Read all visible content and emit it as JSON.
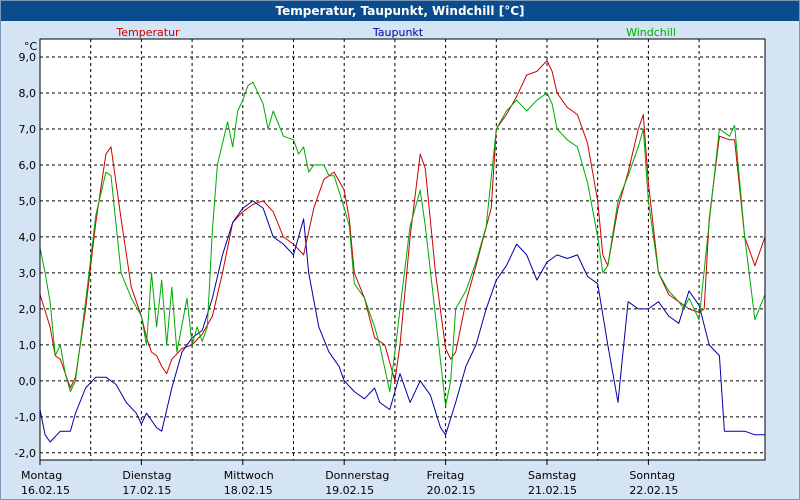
{
  "window": {
    "title": "Temperatur, Taupunkt, Windchill [°C]"
  },
  "colors": {
    "temperature": "#cc0000",
    "dewpoint": "#0000aa",
    "windchill": "#00aa00",
    "grid": "#000000",
    "plot_bg": "#ffffff",
    "titlebar": "#0b4c8f",
    "background": "#d4e4f4"
  },
  "chart_data": {
    "type": "line",
    "title": "Temperatur, Taupunkt, Windchill [°C]",
    "ylabel": "°C",
    "ylim": [
      -2.2,
      9.5
    ],
    "yticks": [
      -2,
      -1,
      0,
      1,
      2,
      3,
      4,
      5,
      6,
      7,
      8,
      9
    ],
    "ytick_labels": [
      "-2,0",
      "-1,0",
      "0,0",
      "1,0",
      "2,0",
      "3,0",
      "4,0",
      "5,0",
      "6,0",
      "7,0",
      "8,0",
      "9,0"
    ],
    "xlim": [
      0,
      7.15
    ],
    "x_unit": "days from 16.02.15 00:00",
    "xticks": [
      {
        "x": 0,
        "day": "Montag",
        "date": "16.02.15"
      },
      {
        "x": 1,
        "day": "Dienstag",
        "date": "17.02.15"
      },
      {
        "x": 2,
        "day": "Mittwoch",
        "date": "18.02.15"
      },
      {
        "x": 3,
        "day": "Donnerstag",
        "date": "19.02.15"
      },
      {
        "x": 4,
        "day": "Freitag",
        "date": "20.02.15"
      },
      {
        "x": 5,
        "day": "Samstag",
        "date": "21.02.15"
      },
      {
        "x": 6,
        "day": "Sonntag",
        "date": "22.02.15"
      }
    ],
    "grid": true,
    "series": [
      {
        "name": "Temperatur",
        "points": [
          [
            0,
            2.4
          ],
          [
            0.1,
            1.5
          ],
          [
            0.15,
            0.7
          ],
          [
            0.2,
            0.6
          ],
          [
            0.3,
            -0.2
          ],
          [
            0.35,
            0.1
          ],
          [
            0.45,
            2.0
          ],
          [
            0.55,
            4.4
          ],
          [
            0.65,
            6.3
          ],
          [
            0.7,
            6.5
          ],
          [
            0.8,
            4.5
          ],
          [
            0.9,
            2.6
          ],
          [
            1.0,
            1.8
          ],
          [
            1.05,
            1.2
          ],
          [
            1.1,
            0.8
          ],
          [
            1.15,
            0.7
          ],
          [
            1.2,
            0.4
          ],
          [
            1.25,
            0.2
          ],
          [
            1.3,
            0.6
          ],
          [
            1.4,
            0.9
          ],
          [
            1.5,
            1.0
          ],
          [
            1.6,
            1.3
          ],
          [
            1.7,
            1.8
          ],
          [
            1.8,
            3.0
          ],
          [
            1.9,
            4.4
          ],
          [
            2.0,
            4.7
          ],
          [
            2.1,
            4.9
          ],
          [
            2.2,
            5.0
          ],
          [
            2.3,
            4.7
          ],
          [
            2.4,
            4.0
          ],
          [
            2.5,
            3.8
          ],
          [
            2.6,
            3.5
          ],
          [
            2.7,
            4.8
          ],
          [
            2.8,
            5.6
          ],
          [
            2.9,
            5.8
          ],
          [
            3.0,
            5.3
          ],
          [
            3.05,
            4.5
          ],
          [
            3.1,
            3.0
          ],
          [
            3.2,
            2.3
          ],
          [
            3.3,
            1.2
          ],
          [
            3.4,
            1.0
          ],
          [
            3.5,
            0.0
          ],
          [
            3.55,
            1.0
          ],
          [
            3.65,
            4.0
          ],
          [
            3.75,
            6.3
          ],
          [
            3.8,
            5.9
          ],
          [
            3.9,
            3.0
          ],
          [
            4.0,
            0.9
          ],
          [
            4.05,
            0.6
          ],
          [
            4.1,
            0.8
          ],
          [
            4.2,
            2.2
          ],
          [
            4.3,
            3.2
          ],
          [
            4.45,
            4.8
          ],
          [
            4.5,
            7.0
          ],
          [
            4.6,
            7.4
          ],
          [
            4.7,
            7.9
          ],
          [
            4.8,
            8.5
          ],
          [
            4.9,
            8.6
          ],
          [
            5.0,
            8.9
          ],
          [
            5.05,
            8.6
          ],
          [
            5.1,
            8.0
          ],
          [
            5.2,
            7.6
          ],
          [
            5.3,
            7.4
          ],
          [
            5.4,
            6.6
          ],
          [
            5.5,
            5.0
          ],
          [
            5.55,
            3.5
          ],
          [
            5.6,
            3.2
          ],
          [
            5.7,
            4.8
          ],
          [
            5.8,
            5.8
          ],
          [
            5.9,
            7.0
          ],
          [
            5.95,
            7.4
          ],
          [
            6.0,
            5.5
          ],
          [
            6.1,
            3.0
          ],
          [
            6.2,
            2.4
          ],
          [
            6.3,
            2.2
          ],
          [
            6.4,
            2.0
          ],
          [
            6.5,
            1.9
          ],
          [
            6.55,
            2.0
          ],
          [
            6.6,
            4.5
          ],
          [
            6.7,
            6.8
          ],
          [
            6.8,
            6.7
          ],
          [
            6.85,
            6.7
          ],
          [
            6.95,
            4.0
          ],
          [
            7.05,
            3.2
          ],
          [
            7.15,
            4.0
          ]
        ]
      },
      {
        "name": "Taupunkt",
        "points": [
          [
            0,
            -0.8
          ],
          [
            0.05,
            -1.5
          ],
          [
            0.1,
            -1.7
          ],
          [
            0.2,
            -1.4
          ],
          [
            0.3,
            -1.4
          ],
          [
            0.35,
            -0.9
          ],
          [
            0.45,
            -0.2
          ],
          [
            0.55,
            0.1
          ],
          [
            0.65,
            0.1
          ],
          [
            0.75,
            -0.1
          ],
          [
            0.85,
            -0.6
          ],
          [
            0.95,
            -0.9
          ],
          [
            1.0,
            -1.2
          ],
          [
            1.05,
            -0.9
          ],
          [
            1.15,
            -1.3
          ],
          [
            1.2,
            -1.4
          ],
          [
            1.3,
            -0.2
          ],
          [
            1.4,
            0.8
          ],
          [
            1.5,
            1.2
          ],
          [
            1.6,
            1.4
          ],
          [
            1.7,
            2.3
          ],
          [
            1.8,
            3.5
          ],
          [
            1.9,
            4.4
          ],
          [
            2.0,
            4.8
          ],
          [
            2.1,
            5.0
          ],
          [
            2.2,
            4.8
          ],
          [
            2.3,
            4.0
          ],
          [
            2.4,
            3.8
          ],
          [
            2.5,
            3.5
          ],
          [
            2.6,
            4.5
          ],
          [
            2.65,
            3.0
          ],
          [
            2.75,
            1.5
          ],
          [
            2.85,
            0.8
          ],
          [
            2.95,
            0.4
          ],
          [
            3.0,
            0.0
          ],
          [
            3.1,
            -0.3
          ],
          [
            3.2,
            -0.5
          ],
          [
            3.3,
            -0.2
          ],
          [
            3.35,
            -0.6
          ],
          [
            3.45,
            -0.8
          ],
          [
            3.55,
            0.2
          ],
          [
            3.65,
            -0.6
          ],
          [
            3.75,
            0.0
          ],
          [
            3.85,
            -0.4
          ],
          [
            3.95,
            -1.3
          ],
          [
            4.0,
            -1.5
          ],
          [
            4.1,
            -0.6
          ],
          [
            4.2,
            0.4
          ],
          [
            4.3,
            1.0
          ],
          [
            4.4,
            2.0
          ],
          [
            4.5,
            2.8
          ],
          [
            4.6,
            3.2
          ],
          [
            4.7,
            3.8
          ],
          [
            4.8,
            3.5
          ],
          [
            4.9,
            2.8
          ],
          [
            5.0,
            3.3
          ],
          [
            5.1,
            3.5
          ],
          [
            5.2,
            3.4
          ],
          [
            5.3,
            3.5
          ],
          [
            5.4,
            2.9
          ],
          [
            5.5,
            2.7
          ],
          [
            5.6,
            1.0
          ],
          [
            5.7,
            -0.6
          ],
          [
            5.75,
            0.8
          ],
          [
            5.8,
            2.2
          ],
          [
            5.9,
            2.0
          ],
          [
            6.0,
            2.0
          ],
          [
            6.1,
            2.2
          ],
          [
            6.2,
            1.8
          ],
          [
            6.3,
            1.6
          ],
          [
            6.4,
            2.5
          ],
          [
            6.5,
            2.1
          ],
          [
            6.6,
            1.0
          ],
          [
            6.7,
            0.7
          ],
          [
            6.75,
            -1.4
          ],
          [
            6.8,
            -1.4
          ],
          [
            6.85,
            -1.4
          ],
          [
            6.95,
            -1.4
          ],
          [
            7.05,
            -1.5
          ],
          [
            7.15,
            -1.5
          ]
        ]
      },
      {
        "name": "Windchill",
        "points": [
          [
            0,
            3.7
          ],
          [
            0.05,
            3.0
          ],
          [
            0.1,
            2.2
          ],
          [
            0.15,
            0.7
          ],
          [
            0.2,
            1.0
          ],
          [
            0.25,
            0.2
          ],
          [
            0.3,
            -0.3
          ],
          [
            0.35,
            0.0
          ],
          [
            0.45,
            2.2
          ],
          [
            0.55,
            4.6
          ],
          [
            0.65,
            5.8
          ],
          [
            0.7,
            5.7
          ],
          [
            0.8,
            3.0
          ],
          [
            0.9,
            2.3
          ],
          [
            1.0,
            1.8
          ],
          [
            1.05,
            1.0
          ],
          [
            1.1,
            3.0
          ],
          [
            1.15,
            1.5
          ],
          [
            1.2,
            2.8
          ],
          [
            1.25,
            1.0
          ],
          [
            1.3,
            2.6
          ],
          [
            1.35,
            0.8
          ],
          [
            1.45,
            2.3
          ],
          [
            1.5,
            1.0
          ],
          [
            1.55,
            1.5
          ],
          [
            1.6,
            1.1
          ],
          [
            1.65,
            1.5
          ],
          [
            1.7,
            4.2
          ],
          [
            1.75,
            6.0
          ],
          [
            1.85,
            7.2
          ],
          [
            1.9,
            6.5
          ],
          [
            1.95,
            7.5
          ],
          [
            2.0,
            7.8
          ],
          [
            2.05,
            8.2
          ],
          [
            2.1,
            8.3
          ],
          [
            2.2,
            7.7
          ],
          [
            2.25,
            7.0
          ],
          [
            2.3,
            7.5
          ],
          [
            2.4,
            6.8
          ],
          [
            2.5,
            6.7
          ],
          [
            2.55,
            6.3
          ],
          [
            2.6,
            6.5
          ],
          [
            2.65,
            5.8
          ],
          [
            2.7,
            6.0
          ],
          [
            2.8,
            6.0
          ],
          [
            2.85,
            5.7
          ],
          [
            2.9,
            5.7
          ],
          [
            3.0,
            4.8
          ],
          [
            3.05,
            4.3
          ],
          [
            3.1,
            2.7
          ],
          [
            3.2,
            2.3
          ],
          [
            3.3,
            1.5
          ],
          [
            3.35,
            1.0
          ],
          [
            3.45,
            -0.3
          ],
          [
            3.5,
            0.8
          ],
          [
            3.55,
            2.0
          ],
          [
            3.65,
            4.3
          ],
          [
            3.75,
            5.3
          ],
          [
            3.8,
            4.3
          ],
          [
            3.9,
            1.8
          ],
          [
            4.0,
            -0.7
          ],
          [
            4.05,
            0.0
          ],
          [
            4.1,
            2.0
          ],
          [
            4.2,
            2.5
          ],
          [
            4.3,
            3.3
          ],
          [
            4.4,
            4.3
          ],
          [
            4.5,
            7.0
          ],
          [
            4.6,
            7.5
          ],
          [
            4.7,
            7.8
          ],
          [
            4.8,
            7.5
          ],
          [
            4.9,
            7.8
          ],
          [
            5.0,
            8.0
          ],
          [
            5.05,
            7.7
          ],
          [
            5.1,
            7.0
          ],
          [
            5.2,
            6.7
          ],
          [
            5.3,
            6.5
          ],
          [
            5.4,
            5.5
          ],
          [
            5.5,
            4.0
          ],
          [
            5.55,
            3.0
          ],
          [
            5.6,
            3.2
          ],
          [
            5.7,
            5.0
          ],
          [
            5.8,
            5.7
          ],
          [
            5.9,
            6.5
          ],
          [
            5.95,
            7.0
          ],
          [
            6.0,
            5.0
          ],
          [
            6.1,
            3.0
          ],
          [
            6.2,
            2.5
          ],
          [
            6.3,
            2.2
          ],
          [
            6.35,
            2.0
          ],
          [
            6.4,
            2.3
          ],
          [
            6.5,
            1.7
          ],
          [
            6.6,
            4.4
          ],
          [
            6.7,
            7.0
          ],
          [
            6.8,
            6.8
          ],
          [
            6.85,
            7.1
          ],
          [
            6.95,
            4.0
          ],
          [
            7.05,
            1.7
          ],
          [
            7.15,
            2.4
          ]
        ]
      }
    ]
  }
}
